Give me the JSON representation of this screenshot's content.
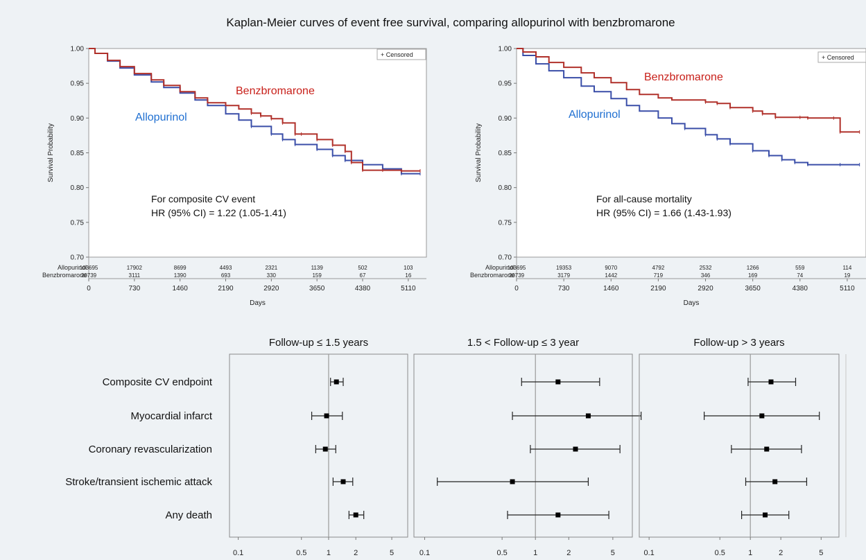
{
  "figure_title": "Kaplan-Meier curves of event free survival, comparing allopurinol with benzbromarone",
  "colors": {
    "allopurinol": "#3a4ea8",
    "benzbromarone": "#b0302a",
    "allopurinol_label": "#1f6fd1",
    "benzbromarone_label": "#c8201a"
  },
  "chart_data": [
    {
      "type": "line",
      "ylabel": "Survival Probability",
      "xlabel": "Days",
      "ylim": [
        0.7,
        1.0
      ],
      "xlim": [
        0,
        5400
      ],
      "yticks": [
        0.7,
        0.75,
        0.8,
        0.85,
        0.9,
        0.95,
        1.0
      ],
      "ytick_labels": [
        "0.70",
        "0.75",
        "0.80",
        "0.85",
        "0.90",
        "0.95",
        "1.00"
      ],
      "xticks": [
        0,
        730,
        1460,
        2190,
        2920,
        3650,
        4380,
        5110
      ],
      "legend": "+ Censored",
      "legend_position": "top-right",
      "annotation_line1": "For composite CV event",
      "annotation_line2": "HR (95% CI) = 1.22 (1.05-1.41)",
      "series": [
        {
          "name": "Allopurinol",
          "x": [
            0,
            100,
            300,
            500,
            730,
            1000,
            1200,
            1460,
            1700,
            1900,
            2190,
            2400,
            2600,
            2920,
            3100,
            3300,
            3650,
            3900,
            4100,
            4380,
            4700,
            5000,
            5300
          ],
          "y": [
            1.0,
            0.993,
            0.982,
            0.972,
            0.962,
            0.952,
            0.944,
            0.936,
            0.926,
            0.918,
            0.906,
            0.897,
            0.888,
            0.877,
            0.869,
            0.862,
            0.855,
            0.846,
            0.839,
            0.833,
            0.827,
            0.82,
            0.82
          ]
        },
        {
          "name": "Benzbromarone",
          "x": [
            0,
            100,
            300,
            500,
            730,
            1000,
            1200,
            1460,
            1700,
            1900,
            2190,
            2400,
            2600,
            2750,
            2920,
            3100,
            3300,
            3400,
            3650,
            3900,
            4100,
            4200,
            4380,
            4700,
            5000,
            5300
          ],
          "y": [
            1.0,
            0.993,
            0.983,
            0.974,
            0.964,
            0.955,
            0.947,
            0.938,
            0.929,
            0.922,
            0.918,
            0.913,
            0.907,
            0.903,
            0.899,
            0.893,
            0.877,
            0.877,
            0.869,
            0.861,
            0.852,
            0.836,
            0.825,
            0.825,
            0.824,
            0.824
          ]
        }
      ],
      "risk_table": {
        "labels": [
          "Allopurinol",
          "Benzbromarone"
        ],
        "allopurinol": [
          "103695",
          "17902",
          "8699",
          "4493",
          "2321",
          "1139",
          "502",
          "103"
        ],
        "benzbromarone": [
          "20739",
          "3111",
          "1390",
          "693",
          "330",
          "159",
          "67",
          "16"
        ]
      }
    },
    {
      "type": "line",
      "ylabel": "Survival Probability",
      "xlabel": "Days",
      "ylim": [
        0.7,
        1.0
      ],
      "xlim": [
        0,
        5400
      ],
      "yticks": [
        0.7,
        0.75,
        0.8,
        0.85,
        0.9,
        0.95,
        1.0
      ],
      "ytick_labels": [
        "0.70",
        "0.75",
        "0.80",
        "0.85",
        "0.90",
        "0.95",
        "1.00"
      ],
      "xticks": [
        0,
        730,
        1460,
        2190,
        2920,
        3650,
        4380,
        5110
      ],
      "legend": "+ Censored",
      "legend_position": "top-right",
      "annotation_line1": "For all-cause mortality",
      "annotation_line2": "HR (95% CI) = 1.66 (1.43-1.93)",
      "series": [
        {
          "name": "Allopurinol",
          "x": [
            0,
            100,
            300,
            500,
            730,
            1000,
            1200,
            1460,
            1700,
            1900,
            2190,
            2400,
            2600,
            2920,
            3100,
            3300,
            3650,
            3900,
            4100,
            4300,
            4500,
            5000,
            5300
          ],
          "y": [
            1.0,
            0.99,
            0.978,
            0.968,
            0.958,
            0.946,
            0.938,
            0.928,
            0.918,
            0.91,
            0.9,
            0.892,
            0.885,
            0.876,
            0.87,
            0.863,
            0.853,
            0.846,
            0.84,
            0.836,
            0.833,
            0.833,
            0.833
          ]
        },
        {
          "name": "Benzbromarone",
          "x": [
            0,
            100,
            300,
            500,
            730,
            1000,
            1200,
            1460,
            1700,
            1900,
            2190,
            2400,
            2920,
            3100,
            3300,
            3650,
            3800,
            4000,
            4380,
            4500,
            4900,
            5000,
            5300
          ],
          "y": [
            1.0,
            0.995,
            0.988,
            0.98,
            0.973,
            0.965,
            0.958,
            0.951,
            0.941,
            0.934,
            0.929,
            0.926,
            0.923,
            0.921,
            0.915,
            0.91,
            0.906,
            0.901,
            0.901,
            0.9,
            0.9,
            0.88,
            0.88
          ]
        }
      ],
      "risk_table": {
        "labels": [
          "Allopurinol",
          "Benzbromarone"
        ],
        "allopurinol": [
          "103695",
          "19353",
          "9070",
          "4792",
          "2532",
          "1266",
          "559",
          "114"
        ],
        "benzbromarone": [
          "20739",
          "3179",
          "1442",
          "719",
          "346",
          "169",
          "74",
          "19"
        ]
      }
    },
    {
      "type": "forest",
      "x_scale": "log",
      "xlim": [
        0.08,
        7.5
      ],
      "xticks": [
        0.1,
        0.5,
        1,
        2,
        5
      ],
      "xtick_labels": [
        "0.1",
        "0.5",
        "1",
        "2",
        "5"
      ],
      "reference_line": 1,
      "categories": [
        "Composite CV endpoint",
        "Myocardial infarct",
        "Coronary revascularization",
        "Stroke/transient ischemic attack",
        "Any death"
      ],
      "panels": [
        {
          "title": "Follow-up ≤ 1.5 years",
          "estimates": [
            1.22,
            0.95,
            0.92,
            1.45,
            2.0
          ],
          "lower": [
            1.05,
            0.65,
            0.72,
            1.12,
            1.68
          ],
          "upper": [
            1.45,
            1.42,
            1.2,
            1.85,
            2.45
          ]
        },
        {
          "title": "1.5 < Follow-up ≤ 3 year",
          "estimates": [
            1.6,
            3.0,
            2.3,
            0.62,
            1.6
          ],
          "lower": [
            0.75,
            0.62,
            0.9,
            0.13,
            0.56
          ],
          "upper": [
            3.8,
            9.0,
            5.8,
            3.0,
            4.6
          ]
        },
        {
          "title": "Follow-up > 3 years",
          "estimates": [
            1.6,
            1.3,
            1.45,
            1.75,
            1.4
          ],
          "lower": [
            0.95,
            0.35,
            0.65,
            0.9,
            0.82
          ],
          "upper": [
            2.8,
            4.8,
            3.2,
            3.6,
            2.4
          ]
        }
      ]
    }
  ]
}
